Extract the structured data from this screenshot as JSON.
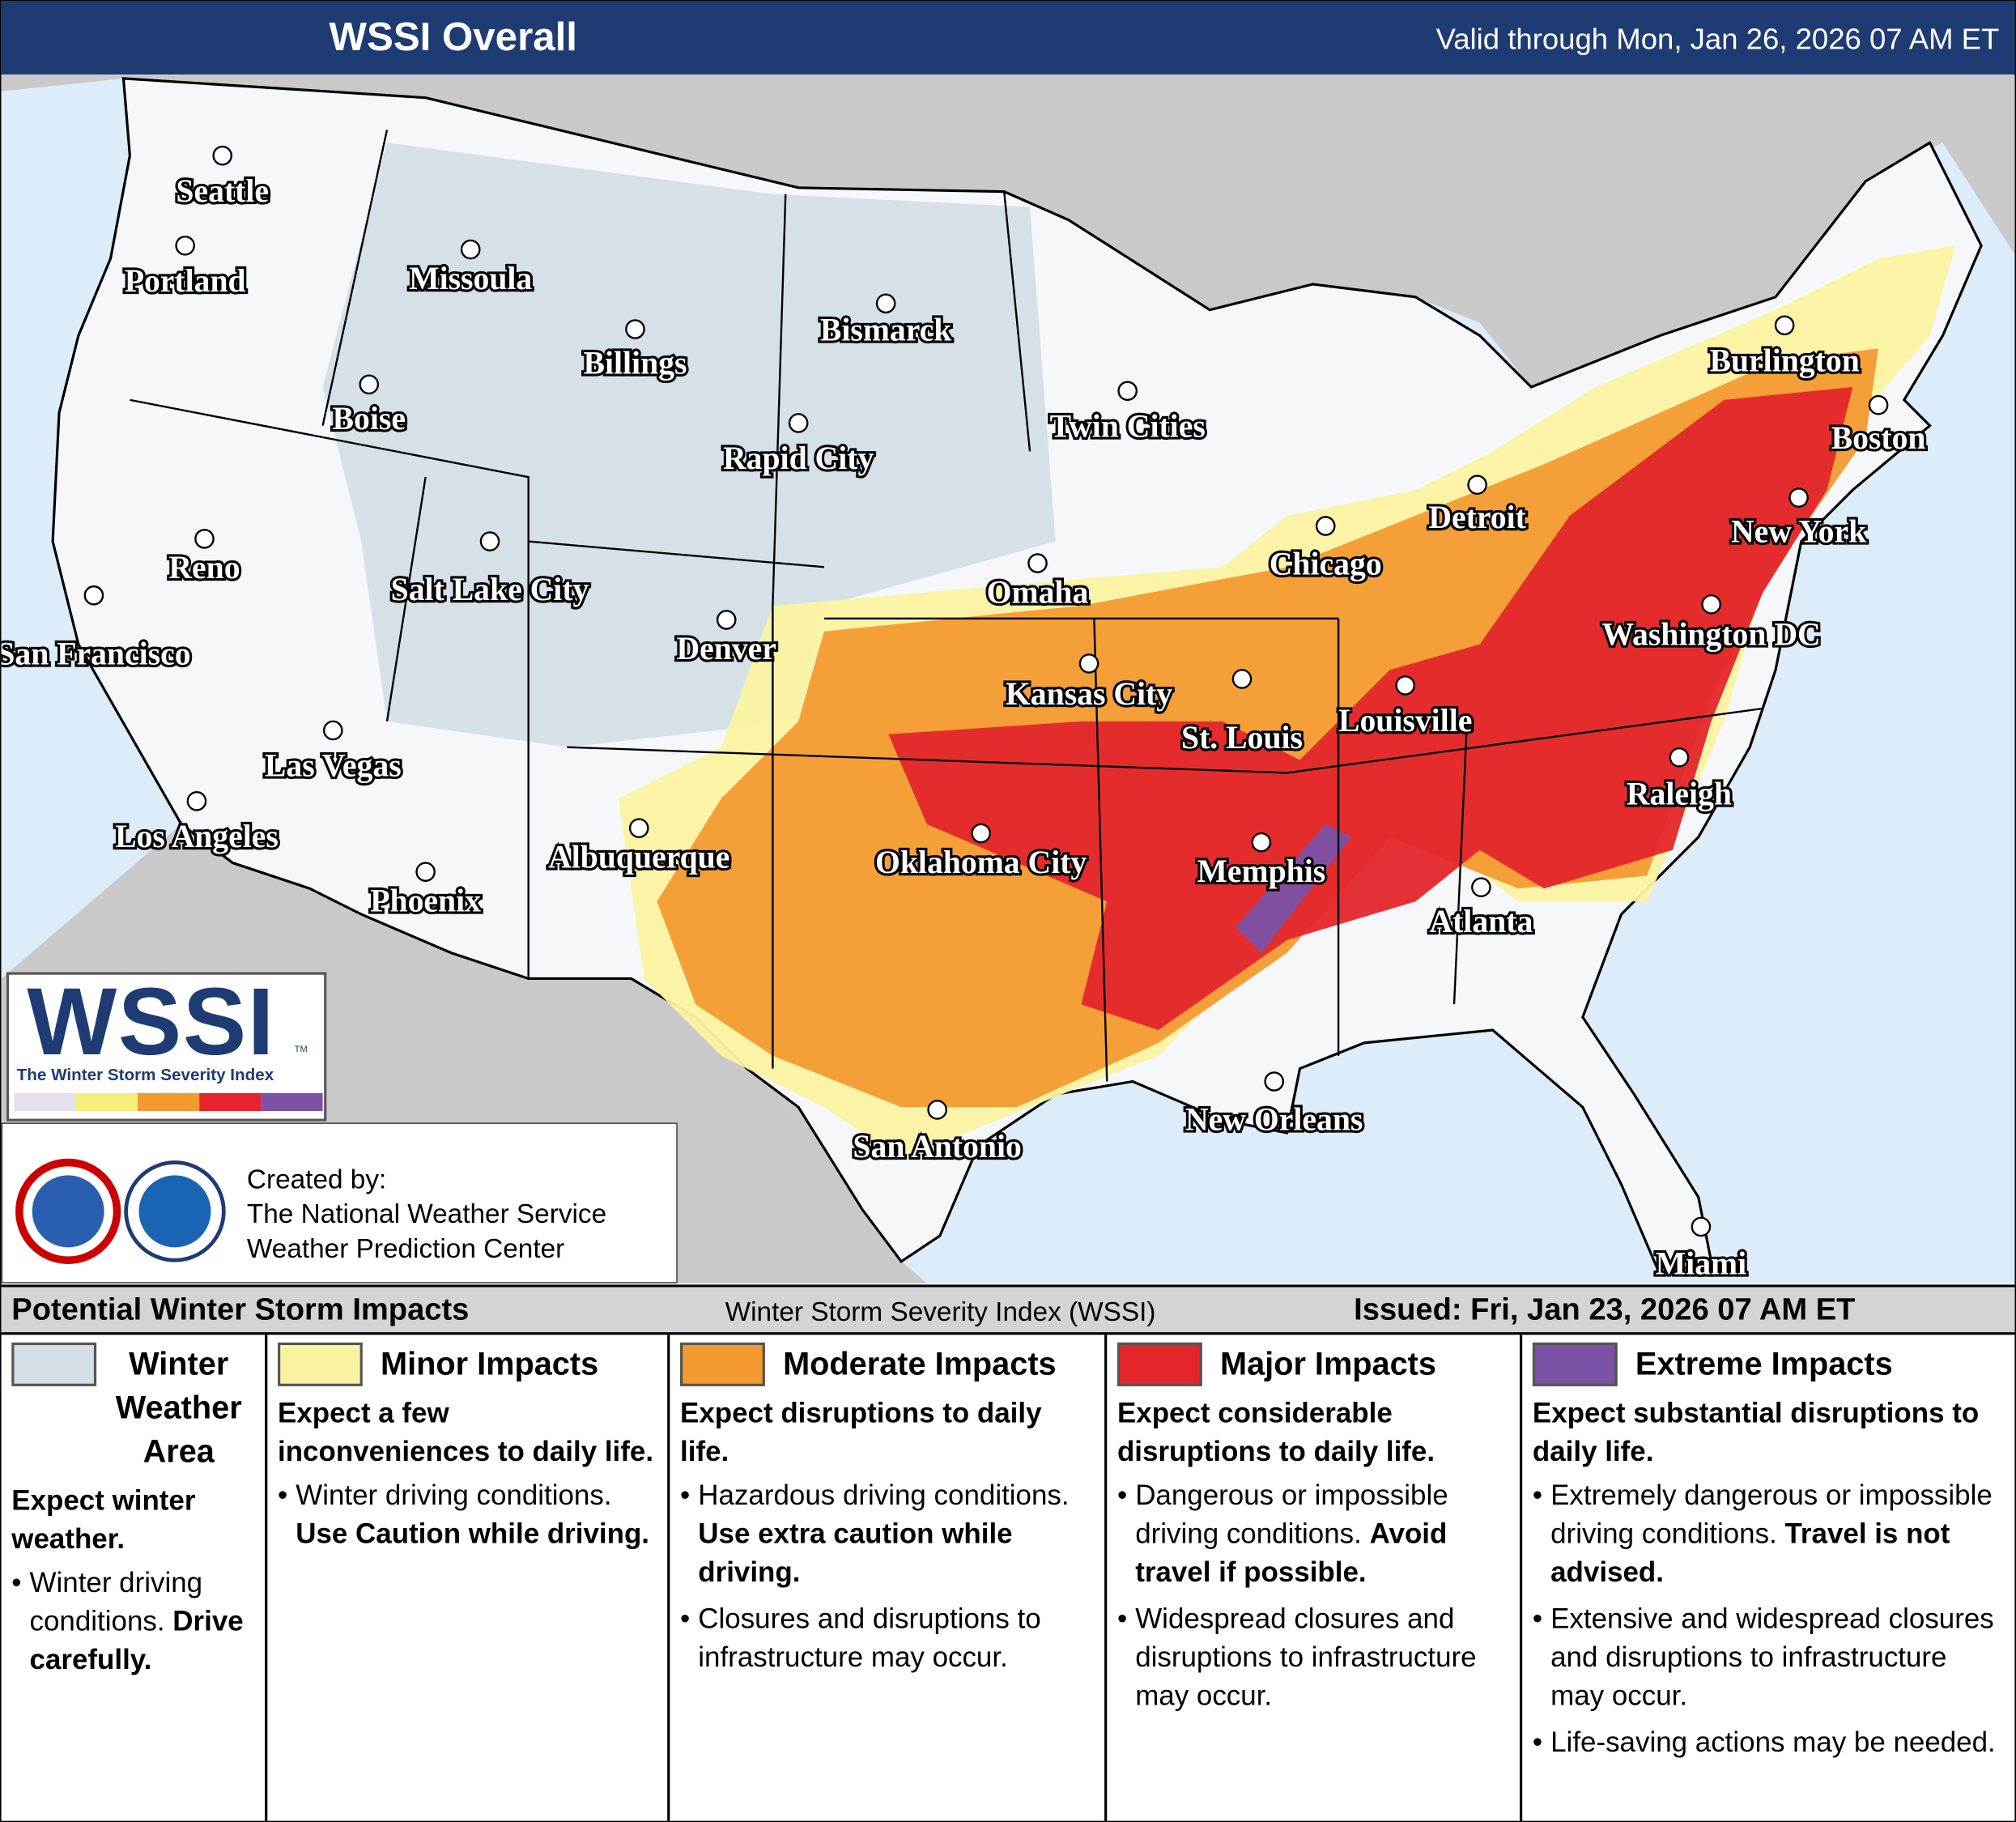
{
  "header": {
    "title": "WSSI Overall",
    "valid": "Valid through Mon, Jan 26, 2026 07 AM ET"
  },
  "map": {
    "cities": [
      "Seattle",
      "Portland",
      "Missoula",
      "Bismarck",
      "Billings",
      "Boise",
      "Rapid City",
      "Twin Cities",
      "Burlington",
      "Boston",
      "Detroit",
      "New York",
      "Reno",
      "Salt Lake City",
      "Chicago",
      "Omaha",
      "San Francisco",
      "Denver",
      "Washington DC",
      "Kansas City",
      "St. Louis",
      "Louisville",
      "Las Vegas",
      "Raleigh",
      "Los Angeles",
      "Albuquerque",
      "Oklahoma City",
      "Memphis",
      "Phoenix",
      "Atlanta",
      "New Orleans",
      "San Antonio",
      "Miami"
    ]
  },
  "logo": {
    "text": "WSSI",
    "tm": "TM",
    "subtitle": "The Winter Storm Severity Index"
  },
  "credits": {
    "label": "Created by:",
    "lines": [
      "The National Weather Service",
      "Weather Prediction Center"
    ]
  },
  "legend": {
    "title": "Potential Winter Storm Impacts",
    "center": "Winter Storm Severity Index (WSSI)",
    "issued": "Issued: Fri, Jan 23, 2026 07 AM ET",
    "categories": [
      {
        "name": "Winter Weather Area",
        "color": "#d3dee6",
        "summary": "Expect winter weather.",
        "bullets": [
          {
            "text": "Winter driving conditions.",
            "emphasis": "Drive carefully."
          }
        ]
      },
      {
        "name": "Minor Impacts",
        "color": "#fbf3a2",
        "summary": "Expect a few inconveniences to daily life.",
        "bullets": [
          {
            "text": "Winter driving conditions.",
            "emphasis": "Use Caution while driving."
          }
        ]
      },
      {
        "name": "Moderate Impacts",
        "color": "#f39a30",
        "summary": "Expect disruptions to daily life.",
        "bullets": [
          {
            "text": "Hazardous driving conditions.",
            "emphasis": "Use extra caution while driving."
          },
          {
            "text": "Closures and disruptions to infrastructure may occur."
          }
        ]
      },
      {
        "name": "Major Impacts",
        "color": "#e4262b",
        "summary": "Expect considerable disruptions to daily life.",
        "bullets": [
          {
            "text": "Dangerous or impossible driving conditions.",
            "emphasis": "Avoid travel if possible."
          },
          {
            "text": "Widespread closures and disruptions to infrastructure may occur."
          }
        ]
      },
      {
        "name": "Extreme Impacts",
        "color": "#7b52a6",
        "summary": "Expect substantial disruptions to daily life.",
        "bullets": [
          {
            "text": "Extremely dangerous or impossible driving conditions.",
            "emphasis": "Travel is not advised."
          },
          {
            "text": "Extensive and widespread closures and disruptions to infrastructure may occur."
          },
          {
            "text": "Life-saving actions may be needed."
          }
        ]
      }
    ]
  }
}
